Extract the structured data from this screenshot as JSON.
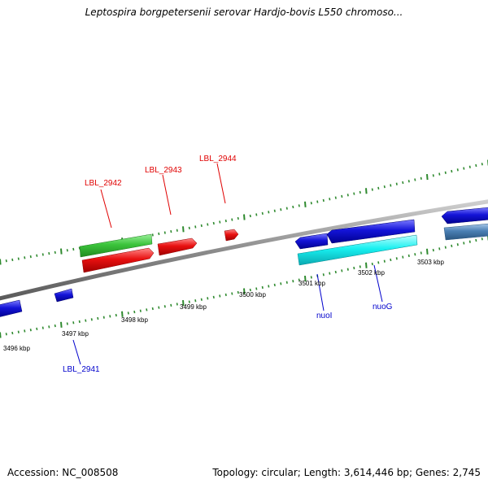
{
  "title": "Leptospira borgpetersenii serovar Hardjo-bovis L550 chromoso...",
  "footer": {
    "accession": "Accession: NC_008508",
    "summary": "Topology: circular; Length: 3,614,446 bp; Genes: 2,745"
  },
  "colors": {
    "background": "#ffffff",
    "backbone": "#8c8c8c",
    "tick": "#2f8a2f",
    "label_forward": "#ff0000",
    "label_reverse": "#0000cc",
    "gene_green": "#3cc43c",
    "gene_red": "#e81010",
    "gene_blue": "#1414d8",
    "gene_cyan": "#18f0f0",
    "gene_steel": "#4a7fb4"
  },
  "scale_labels": [
    "3496 kbp",
    "3497 kbp",
    "3498 kbp",
    "3499 kbp",
    "3500 kbp",
    "3501 kbp",
    "3502 kbp",
    "3503 kbp"
  ],
  "gene_labels": [
    {
      "text": "LBL_2942",
      "strand": "forward"
    },
    {
      "text": "LBL_2943",
      "strand": "forward"
    },
    {
      "text": "LBL_2944",
      "strand": "forward"
    },
    {
      "text": "LBL_2941",
      "strand": "reverse"
    },
    {
      "text": "nuoI",
      "strand": "reverse"
    },
    {
      "text": "nuoG",
      "strand": "reverse"
    }
  ],
  "features": [
    {
      "name": "green-feature",
      "color": "green"
    },
    {
      "name": "red-feature-1",
      "color": "red"
    },
    {
      "name": "red-feature-2",
      "color": "red"
    },
    {
      "name": "red-feature-3",
      "color": "red"
    },
    {
      "name": "blue-feature-1",
      "color": "blue"
    },
    {
      "name": "blue-feature-2",
      "color": "blue"
    },
    {
      "name": "blue-feature-3",
      "color": "blue"
    },
    {
      "name": "blue-feature-4",
      "color": "blue"
    },
    {
      "name": "blue-feature-5",
      "color": "blue"
    },
    {
      "name": "cyan-feature",
      "color": "cyan"
    },
    {
      "name": "steel-feature",
      "color": "steel"
    }
  ]
}
